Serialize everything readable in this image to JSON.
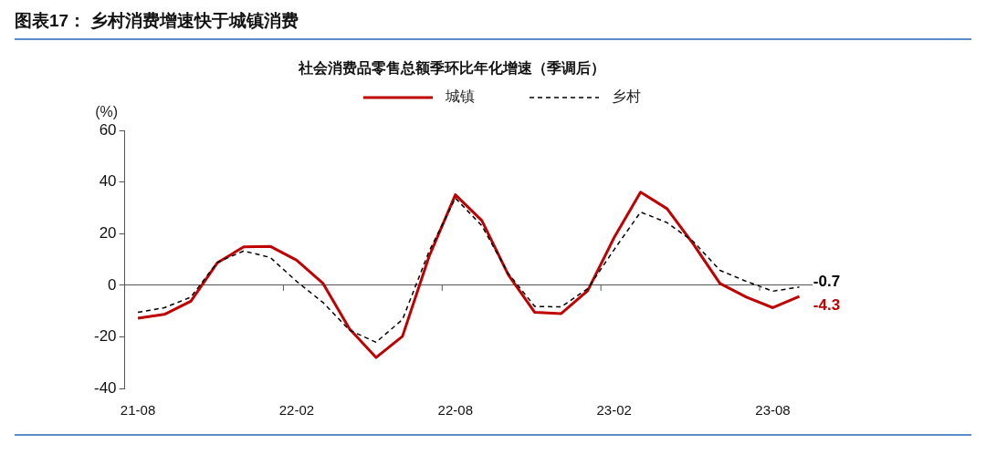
{
  "chart_data": {
    "type": "line",
    "title": "图表17： 乡村消费增速快于城镇消费",
    "subtitle": "社会消费品零售总额季环比年化增速（季调后）",
    "ylabel": "(%)",
    "categories": [
      "21-08",
      null,
      null,
      null,
      null,
      null,
      "22-02",
      null,
      null,
      null,
      null,
      null,
      "22-08",
      null,
      null,
      null,
      null,
      null,
      "23-02",
      null,
      null,
      null,
      null,
      null,
      "23-08",
      null
    ],
    "series": [
      {
        "name": "城镇",
        "color": "#c00000",
        "line_style": "solid",
        "values": [
          -12.8,
          -11.3,
          -6.2,
          8.7,
          14.9,
          15.1,
          9.7,
          0.7,
          -16.9,
          -28.0,
          -19.8,
          11,
          35.1,
          25.1,
          4.1,
          -10.5,
          -11.0,
          -2.1,
          18.5,
          36.1,
          29.7,
          15.9,
          0.7,
          -4.6,
          -8.7,
          -4.3
        ],
        "value_labels": [
          null,
          null,
          null,
          null,
          null,
          null,
          null,
          null,
          null,
          null,
          null,
          null,
          null,
          null,
          null,
          null,
          null,
          null,
          null,
          null,
          null,
          null,
          null,
          null,
          null,
          "-4.3"
        ]
      },
      {
        "name": "乡村",
        "color": "#000000",
        "line_style": "dashed",
        "values": [
          -10.5,
          -8.7,
          -4.6,
          8.9,
          13.3,
          10.8,
          1.5,
          -6.7,
          -17.4,
          -22.1,
          -13.3,
          13,
          33.8,
          23.1,
          4.6,
          -8.2,
          -8.4,
          -1.3,
          13.8,
          28.4,
          24.3,
          16.9,
          5.8,
          1.5,
          -2.3,
          -0.7
        ],
        "value_labels": [
          null,
          null,
          null,
          null,
          null,
          null,
          null,
          null,
          null,
          null,
          null,
          null,
          null,
          null,
          null,
          null,
          null,
          null,
          null,
          null,
          null,
          null,
          null,
          null,
          null,
          "-0.7"
        ]
      }
    ],
    "ylim": [
      -40,
      60
    ],
    "yticks": [
      -40,
      -20,
      0,
      20,
      40,
      60
    ],
    "legend": "top",
    "marker": "none"
  }
}
